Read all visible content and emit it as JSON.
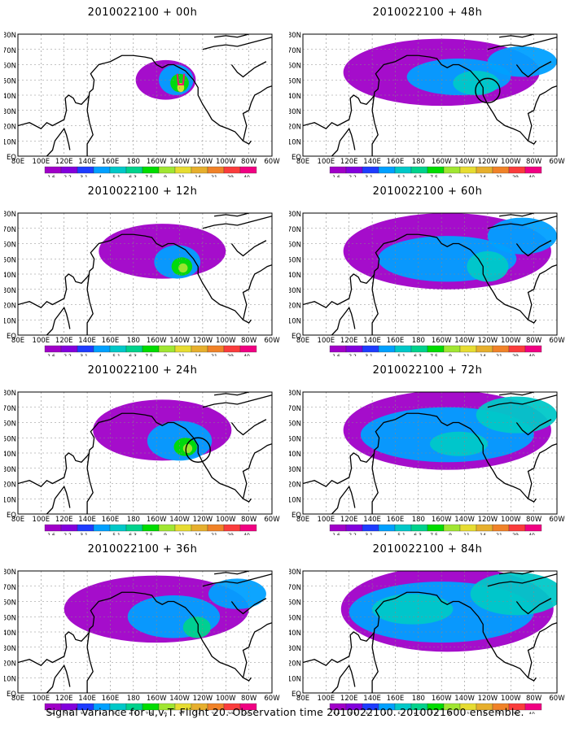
{
  "figure_caption": "Signal Variance for u,v,T. Flight 20. Observation time 2010022100. 2010021600 ensemble.",
  "lat_labels": [
    "80N",
    "70N",
    "60N",
    "50N",
    "40N",
    "30N",
    "20N",
    "10N",
    "EQ"
  ],
  "lon_labels": [
    "80E",
    "100E",
    "120E",
    "140E",
    "160E",
    "180",
    "160W",
    "140W",
    "120W",
    "100W",
    "80W",
    "60W"
  ],
  "colorbar": {
    "levels": [
      "1.6",
      "2.2",
      "3.1",
      "4",
      "5.1",
      "6.3",
      "7.5",
      "9",
      "11",
      "14",
      "21",
      "29",
      "40"
    ],
    "colors": [
      "#a000c8",
      "#8200dc",
      "#1e3cff",
      "#00a0ff",
      "#00c8c8",
      "#00d28c",
      "#00dc00",
      "#a0e632",
      "#e6dc32",
      "#e6af2d",
      "#f08228",
      "#fa3c3c",
      "#f00082"
    ]
  },
  "chart_data": [
    {
      "type": "heatmap",
      "title": "2010022100 + 00h",
      "lat_range": [
        "EQ",
        "80N"
      ],
      "lon_range": [
        "80E",
        "60W"
      ],
      "circle": null,
      "blobs": [
        {
          "lon": 208,
          "lat": 50,
          "rx": 26,
          "ry": 13,
          "level": 0
        },
        {
          "lon": 217,
          "lat": 50,
          "rx": 15,
          "ry": 10,
          "level": 3
        },
        {
          "lon": 220,
          "lat": 48,
          "rx": 8,
          "ry": 6,
          "level": 6
        },
        {
          "lon": 221,
          "lat": 45,
          "rx": 3,
          "ry": 3,
          "level": 8
        }
      ]
    },
    {
      "type": "heatmap",
      "title": "2010022100 + 48h",
      "lat_range": [
        "EQ",
        "80N"
      ],
      "lon_range": [
        "80E",
        "60W"
      ],
      "circle": {
        "lon": 240,
        "lat": 43
      },
      "blobs": [
        {
          "lon": 200,
          "lat": 55,
          "rx": 85,
          "ry": 22,
          "level": 0
        },
        {
          "lon": 215,
          "lat": 52,
          "rx": 45,
          "ry": 12,
          "level": 3
        },
        {
          "lon": 230,
          "lat": 48,
          "rx": 20,
          "ry": 8,
          "level": 4
        },
        {
          "lon": 270,
          "lat": 62,
          "rx": 30,
          "ry": 10,
          "level": 3
        }
      ]
    },
    {
      "type": "heatmap",
      "title": "2010022100 + 12h",
      "lat_range": [
        "EQ",
        "80N"
      ],
      "lon_range": [
        "80E",
        "60W"
      ],
      "circle": null,
      "blobs": [
        {
          "lon": 205,
          "lat": 55,
          "rx": 55,
          "ry": 18,
          "level": 0
        },
        {
          "lon": 218,
          "lat": 48,
          "rx": 20,
          "ry": 11,
          "level": 3
        },
        {
          "lon": 222,
          "lat": 45,
          "rx": 9,
          "ry": 6,
          "level": 6
        },
        {
          "lon": 223,
          "lat": 44,
          "rx": 4,
          "ry": 3,
          "level": 7
        }
      ]
    },
    {
      "type": "heatmap",
      "title": "2010022100 + 60h",
      "lat_range": [
        "EQ",
        "80N"
      ],
      "lon_range": [
        "80E",
        "60W"
      ],
      "circle": null,
      "blobs": [
        {
          "lon": 205,
          "lat": 55,
          "rx": 90,
          "ry": 25,
          "level": 0
        },
        {
          "lon": 205,
          "lat": 50,
          "rx": 60,
          "ry": 15,
          "level": 3
        },
        {
          "lon": 240,
          "lat": 45,
          "rx": 18,
          "ry": 10,
          "level": 4
        },
        {
          "lon": 270,
          "lat": 65,
          "rx": 30,
          "ry": 12,
          "level": 3
        }
      ]
    },
    {
      "type": "heatmap",
      "title": "2010022100 + 24h",
      "lat_range": [
        "EQ",
        "80N"
      ],
      "lon_range": [
        "80E",
        "60W"
      ],
      "circle": {
        "lon": 236,
        "lat": 42
      },
      "blobs": [
        {
          "lon": 205,
          "lat": 55,
          "rx": 60,
          "ry": 20,
          "level": 0
        },
        {
          "lon": 220,
          "lat": 48,
          "rx": 28,
          "ry": 13,
          "level": 3
        },
        {
          "lon": 225,
          "lat": 44,
          "rx": 10,
          "ry": 6,
          "level": 6
        },
        {
          "lon": 227,
          "lat": 43,
          "rx": 4,
          "ry": 3,
          "level": 7
        }
      ]
    },
    {
      "type": "heatmap",
      "title": "2010022100 + 72h",
      "lat_range": [
        "EQ",
        "80N"
      ],
      "lon_range": [
        "80E",
        "60W"
      ],
      "circle": null,
      "blobs": [
        {
          "lon": 205,
          "lat": 55,
          "rx": 90,
          "ry": 26,
          "level": 0
        },
        {
          "lon": 205,
          "lat": 52,
          "rx": 75,
          "ry": 18,
          "level": 3
        },
        {
          "lon": 215,
          "lat": 46,
          "rx": 25,
          "ry": 8,
          "level": 4
        },
        {
          "lon": 265,
          "lat": 65,
          "rx": 35,
          "ry": 12,
          "level": 4
        }
      ]
    },
    {
      "type": "heatmap",
      "title": "2010022100 + 36h",
      "lat_range": [
        "EQ",
        "80N"
      ],
      "lon_range": [
        "80E",
        "60W"
      ],
      "circle": null,
      "blobs": [
        {
          "lon": 200,
          "lat": 55,
          "rx": 80,
          "ry": 22,
          "level": 0
        },
        {
          "lon": 215,
          "lat": 50,
          "rx": 40,
          "ry": 14,
          "level": 3
        },
        {
          "lon": 235,
          "lat": 43,
          "rx": 12,
          "ry": 7,
          "level": 5
        },
        {
          "lon": 270,
          "lat": 65,
          "rx": 25,
          "ry": 10,
          "level": 3
        }
      ]
    },
    {
      "type": "heatmap",
      "title": "2010022100 + 84h",
      "lat_range": [
        "EQ",
        "80N"
      ],
      "lon_range": [
        "80E",
        "60W"
      ],
      "circle": null,
      "blobs": [
        {
          "lon": 205,
          "lat": 55,
          "rx": 92,
          "ry": 28,
          "level": 0
        },
        {
          "lon": 200,
          "lat": 53,
          "rx": 80,
          "ry": 20,
          "level": 3
        },
        {
          "lon": 175,
          "lat": 55,
          "rx": 35,
          "ry": 10,
          "level": 4
        },
        {
          "lon": 265,
          "lat": 65,
          "rx": 40,
          "ry": 14,
          "level": 4
        }
      ]
    }
  ]
}
